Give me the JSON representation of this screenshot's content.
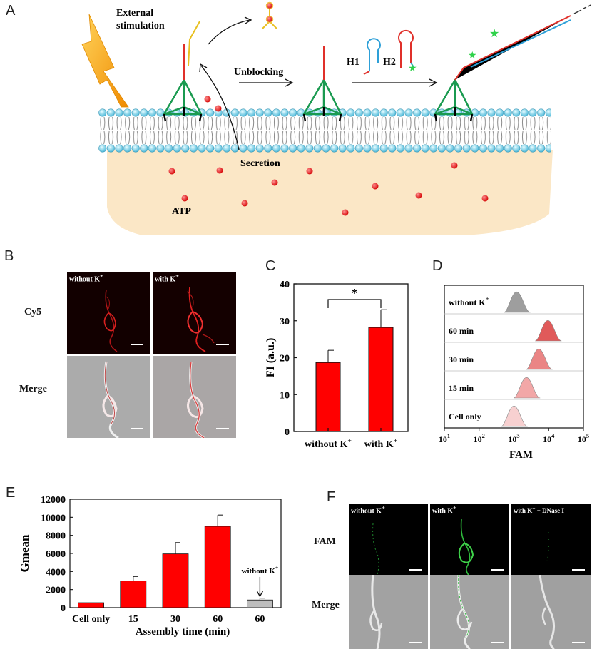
{
  "panelA": {
    "letter": "A",
    "external": [
      "External",
      "stimulation"
    ],
    "unblocking": "Unblocking",
    "secretion": "Secretion",
    "atp": "ATP",
    "h1": "H1",
    "h2": "H2"
  },
  "panelB": {
    "letter": "B",
    "row_labels": [
      "Cy5",
      "Merge"
    ],
    "col_labels": [
      "without K",
      "with K"
    ],
    "superscript": "+"
  },
  "panelC": {
    "letter": "C",
    "sig": "*"
  },
  "panelD": {
    "letter": "D",
    "rows": [
      "without K",
      "60 min",
      "30 min",
      "15 min",
      "Cell only"
    ],
    "superscript": "+",
    "xlabel": "FAM",
    "ticks": [
      "10",
      "10",
      "10",
      "10",
      "10"
    ],
    "tick_exps": [
      "1",
      "2",
      "3",
      "4",
      "5"
    ]
  },
  "panelE": {
    "letter": "E",
    "annotation": "without K",
    "superscript": "+"
  },
  "panelF": {
    "letter": "F",
    "row_labels": [
      "FAM",
      "Merge"
    ],
    "col_labels": [
      "without K",
      "with K",
      "with K"
    ],
    "col_suffix": "+ DNase I",
    "superscript": "+"
  },
  "chart_data": [
    {
      "type": "bar",
      "categories": [
        "without K+",
        "with K+"
      ],
      "values": [
        18.7,
        28.2
      ],
      "errors": [
        3.3,
        4.8
      ],
      "ylabel": "FI (a.u.)",
      "ylim": [
        0,
        40
      ],
      "yticks": [
        0,
        10,
        20,
        30,
        40
      ],
      "color": "#ff0000"
    },
    {
      "type": "bar",
      "categories": [
        "Cell only",
        "15",
        "30",
        "60",
        "60"
      ],
      "values": [
        550,
        2950,
        5950,
        9000,
        850
      ],
      "errors": [
        0,
        500,
        1250,
        1250,
        200
      ],
      "colors": [
        "#ff0000",
        "#ff0000",
        "#ff0000",
        "#ff0000",
        "#bdbdbd"
      ],
      "ylabel": "Gmean",
      "xlabel": "Assembly time (min)",
      "ylim": [
        0,
        12000
      ],
      "yticks": [
        0,
        2000,
        4000,
        6000,
        8000,
        10000,
        12000
      ]
    },
    {
      "type": "area",
      "xscale": "log",
      "xlim": [
        10,
        100000
      ],
      "series": [
        {
          "peak": 1200,
          "color": "#9e9e9e"
        },
        {
          "peak": 9500,
          "color": "#e05a5a"
        },
        {
          "peak": 5200,
          "color": "#ea8585"
        },
        {
          "peak": 2300,
          "color": "#f2a7a7"
        },
        {
          "peak": 1000,
          "color": "#f7d0d0"
        }
      ]
    }
  ]
}
